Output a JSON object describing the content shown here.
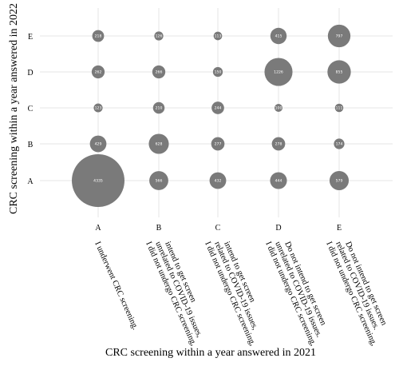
{
  "chart_data": {
    "type": "scatter",
    "subtype": "bubble",
    "xlabel": "CRC screening within a year answered in 2021",
    "ylabel": "CRC screening within a year answered in 2022",
    "x_categories": [
      "A",
      "B",
      "C",
      "D",
      "E"
    ],
    "y_categories": [
      "A",
      "B",
      "C",
      "D",
      "E"
    ],
    "x_category_descriptions": [
      [
        "I underwent CRC screening."
      ],
      [
        "I did not undergo CRC screening,",
        "unrelated to COVID-19 issues,",
        "intend to get screen"
      ],
      [
        "I did not undergo CRC screening,",
        "related to COVID-19 issues,",
        "intend to get screen"
      ],
      [
        "I did not undergo CRC screening,",
        "unrelated to COVID-19 issues.",
        "Do not intend to get screen"
      ],
      [
        "I did not undergo CRC screening,",
        "related to COVID-19 issues.",
        "Do not intend to get screen"
      ]
    ],
    "points": [
      {
        "x": "A",
        "y": "A",
        "value": 4335
      },
      {
        "x": "B",
        "y": "A",
        "value": 566
      },
      {
        "x": "C",
        "y": "A",
        "value": 432
      },
      {
        "x": "D",
        "y": "A",
        "value": 444
      },
      {
        "x": "E",
        "y": "A",
        "value": 579
      },
      {
        "x": "A",
        "y": "B",
        "value": 429
      },
      {
        "x": "B",
        "y": "B",
        "value": 628
      },
      {
        "x": "C",
        "y": "B",
        "value": 277
      },
      {
        "x": "D",
        "y": "B",
        "value": 278
      },
      {
        "x": "E",
        "y": "B",
        "value": 174
      },
      {
        "x": "A",
        "y": "C",
        "value": 123
      },
      {
        "x": "B",
        "y": "C",
        "value": 210
      },
      {
        "x": "C",
        "y": "C",
        "value": 244
      },
      {
        "x": "D",
        "y": "C",
        "value": 100
      },
      {
        "x": "E",
        "y": "C",
        "value": 111
      },
      {
        "x": "A",
        "y": "D",
        "value": 262
      },
      {
        "x": "B",
        "y": "D",
        "value": 266
      },
      {
        "x": "C",
        "y": "D",
        "value": 150
      },
      {
        "x": "D",
        "y": "D",
        "value": 1226
      },
      {
        "x": "E",
        "y": "D",
        "value": 855
      },
      {
        "x": "A",
        "y": "E",
        "value": 218
      },
      {
        "x": "B",
        "y": "E",
        "value": 126
      },
      {
        "x": "C",
        "y": "E",
        "value": 113
      },
      {
        "x": "D",
        "y": "E",
        "value": 415
      },
      {
        "x": "E",
        "y": "E",
        "value": 797
      }
    ],
    "bubble_color": "#7a7a7a",
    "label_color": "#ffffff",
    "grid": true,
    "legend": "none"
  }
}
